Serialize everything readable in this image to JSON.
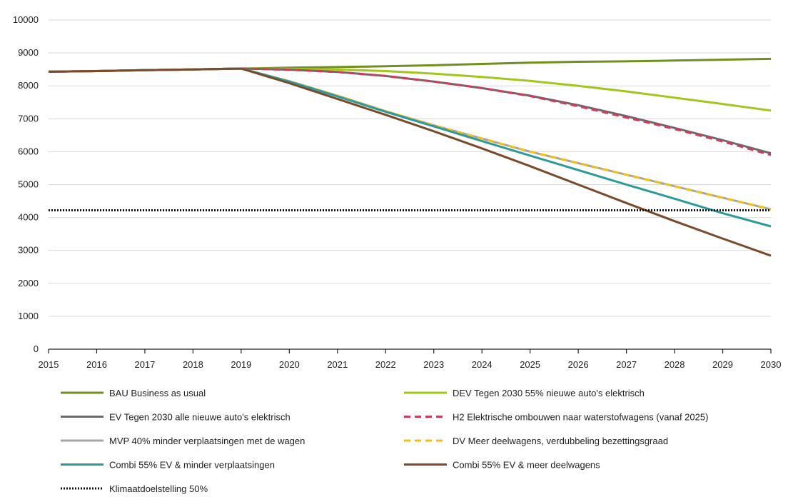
{
  "chart_data": {
    "type": "line",
    "x": [
      2015,
      2016,
      2017,
      2018,
      2019,
      2020,
      2021,
      2022,
      2023,
      2024,
      2025,
      2026,
      2027,
      2028,
      2029,
      2030
    ],
    "xlim": [
      2015,
      2030
    ],
    "ylim": [
      0,
      10000
    ],
    "yticks": [
      0,
      1000,
      2000,
      3000,
      4000,
      5000,
      6000,
      7000,
      8000,
      9000,
      10000
    ],
    "grid": true,
    "legend_position": "bottom",
    "series": [
      {
        "name": "BAU Business as usual",
        "color": "#6f8f1e",
        "style": "solid",
        "values": [
          8430,
          8450,
          8475,
          8500,
          8525,
          8550,
          8570,
          8595,
          8625,
          8665,
          8705,
          8730,
          8745,
          8770,
          8795,
          8820
        ]
      },
      {
        "name": "DEV Tegen 2030 55% nieuwe auto's elektrisch",
        "color": "#a2c61a",
        "style": "solid",
        "values": [
          8430,
          8450,
          8475,
          8500,
          8525,
          8520,
          8495,
          8450,
          8370,
          8270,
          8150,
          8000,
          7830,
          7640,
          7450,
          7250
        ]
      },
      {
        "name": "EV Tegen 2030 alle nieuwe auto's elektrisch",
        "color": "#6a6a6a",
        "style": "solid",
        "values": [
          8430,
          8450,
          8475,
          8500,
          8525,
          8490,
          8420,
          8300,
          8130,
          7930,
          7700,
          7410,
          7080,
          6720,
          6350,
          5950
        ]
      },
      {
        "name": "H2 Elektrische ombouwen naar waterstofwagens (vanaf 2025)",
        "color": "#d6385a",
        "style": "dashed",
        "values": [
          8430,
          8450,
          8475,
          8500,
          8525,
          8490,
          8420,
          8300,
          8130,
          7930,
          7690,
          7380,
          7040,
          6690,
          6310,
          5900
        ]
      },
      {
        "name": "MVP 40% minder verplaatsingen met de wagen",
        "color": "#a5a5a5",
        "style": "solid",
        "values": [
          8430,
          8450,
          8475,
          8500,
          8525,
          8140,
          7700,
          7230,
          6800,
          6400,
          6000,
          5650,
          5300,
          4950,
          4600,
          4250
        ]
      },
      {
        "name": "DV Meer deelwagens, verdubbeling bezettingsgraad",
        "color": "#f5bf12",
        "style": "dashed",
        "values": [
          8430,
          8450,
          8475,
          8500,
          8525,
          8140,
          7700,
          7230,
          6800,
          6400,
          6000,
          5650,
          5300,
          4950,
          4600,
          4250
        ]
      },
      {
        "name": "Combi 55% EV & minder verplaatsingen",
        "color": "#2c9a9a",
        "style": "solid",
        "values": [
          8430,
          8450,
          8475,
          8500,
          8525,
          8130,
          7680,
          7210,
          6770,
          6320,
          5880,
          5440,
          5000,
          4570,
          4130,
          3730
        ]
      },
      {
        "name": "Combi 55% EV & meer deelwagens",
        "color": "#7a4a2a",
        "style": "solid",
        "values": [
          8430,
          8450,
          8475,
          8500,
          8525,
          8080,
          7600,
          7120,
          6620,
          6100,
          5560,
          5000,
          4440,
          3890,
          3360,
          2840
        ]
      },
      {
        "name": "Klimaatdoelstelling 50%",
        "color": "#111111",
        "style": "dotted",
        "values": [
          4220,
          4220,
          4220,
          4220,
          4220,
          4220,
          4220,
          4220,
          4220,
          4220,
          4220,
          4220,
          4220,
          4220,
          4220,
          4220
        ]
      }
    ]
  }
}
